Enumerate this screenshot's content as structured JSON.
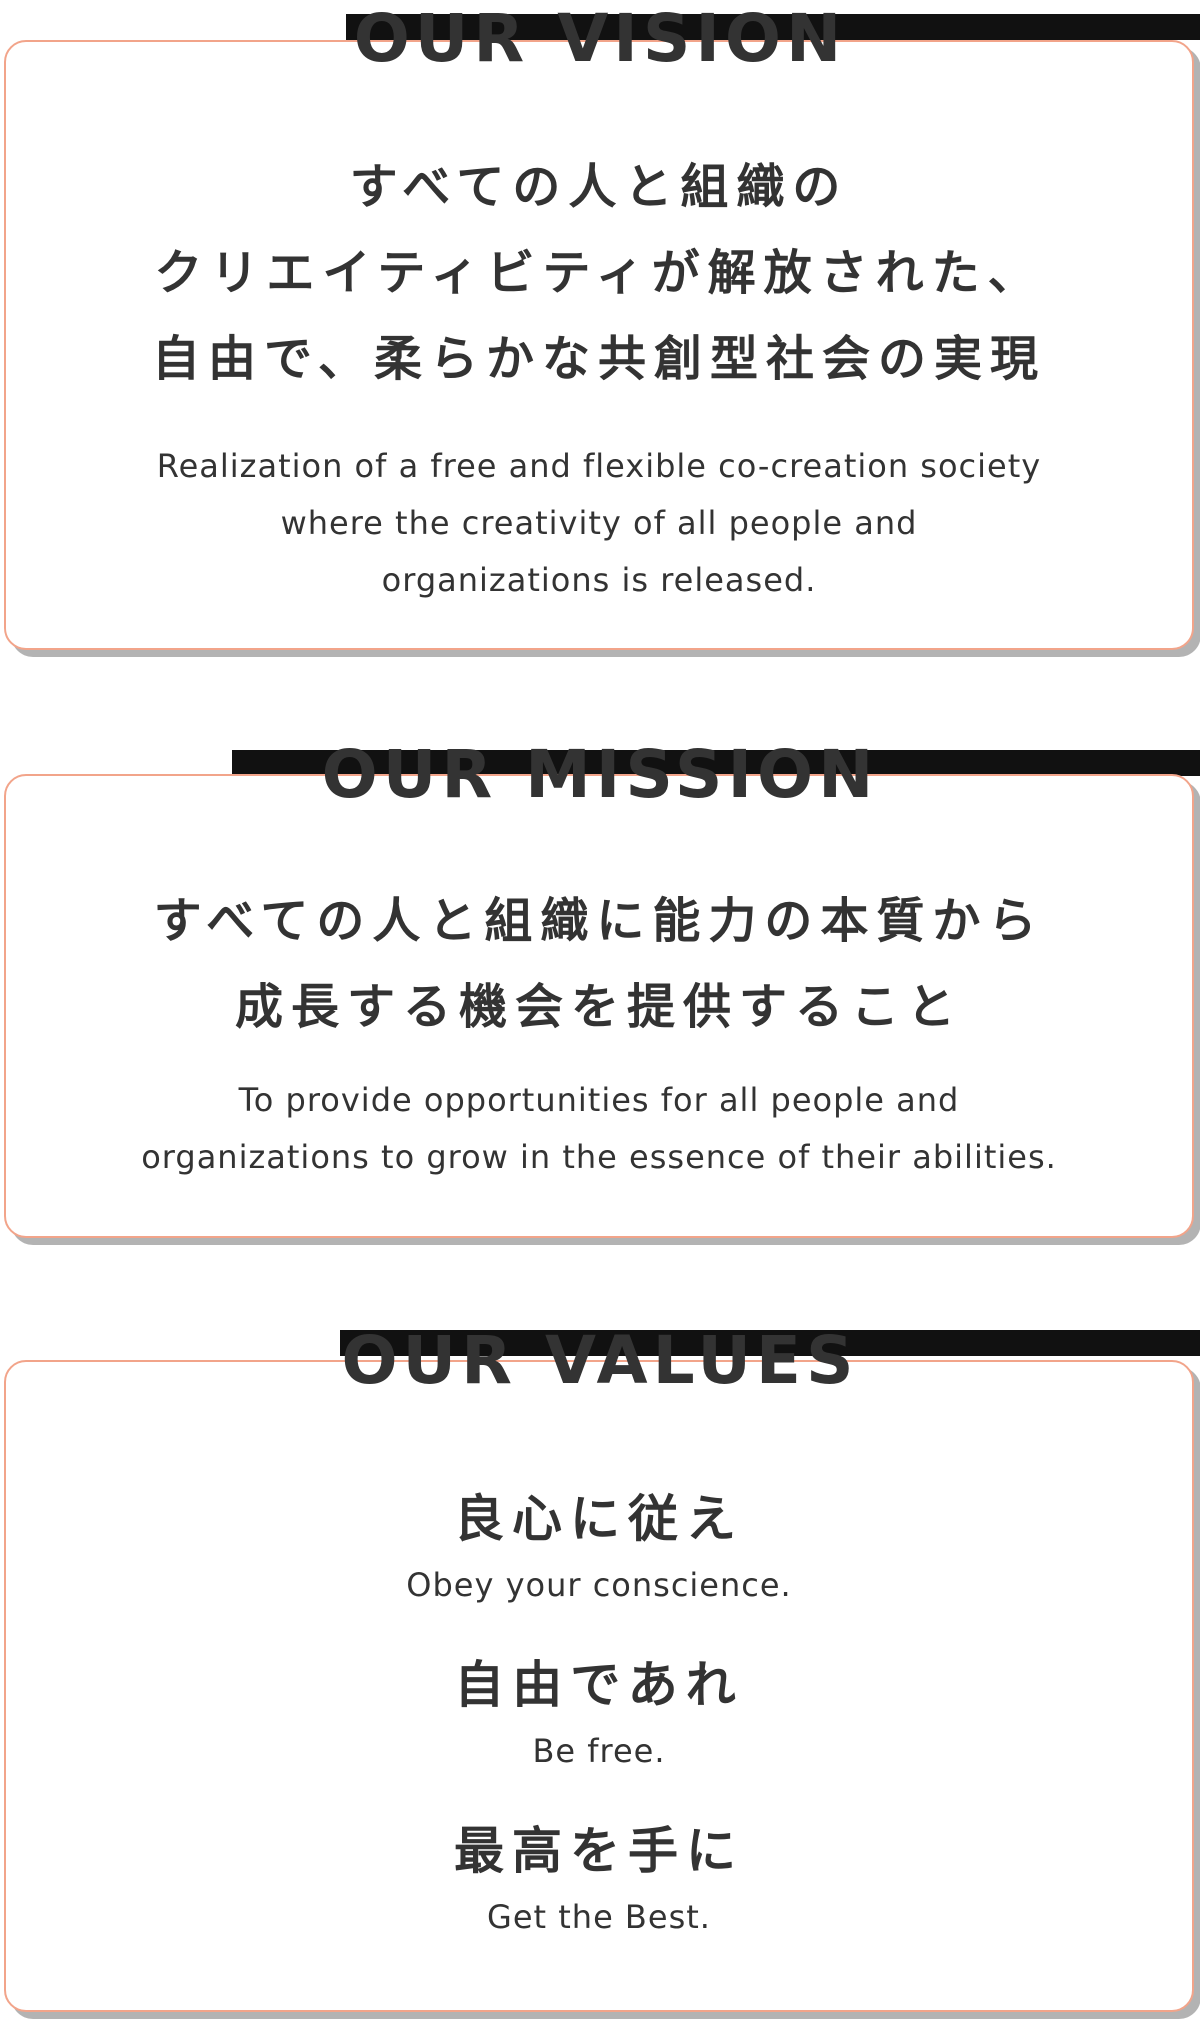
{
  "vision": {
    "heading": "OUR VISION",
    "jp_lines": [
      "すべての人と組織の",
      "クリエイティビティが解放された、",
      "自由で、柔らかな共創型社会の実現"
    ],
    "en_lines": [
      "Realization of a free and flexible co-creation society",
      "where the creativity of all people and",
      "organizations is released."
    ]
  },
  "mission": {
    "heading": "OUR MISSION",
    "jp_lines": [
      "すべての人と組織に能力の本質から",
      "成長する機会を提供すること"
    ],
    "en_lines": [
      "To provide opportunities for all people and",
      "organizations to grow in the essence of their abilities."
    ]
  },
  "values": {
    "heading": "OUR VALUES",
    "items": [
      {
        "jp": "良心に従え",
        "en": "Obey your conscience."
      },
      {
        "jp": "自由であれ",
        "en": "Be free."
      },
      {
        "jp": "最高を手に",
        "en": "Get the Best."
      }
    ]
  },
  "colors": {
    "accent_border": "#f2a48a",
    "text": "#333333",
    "shadow": "#b3b3b3",
    "heading_bar": "#111111"
  }
}
